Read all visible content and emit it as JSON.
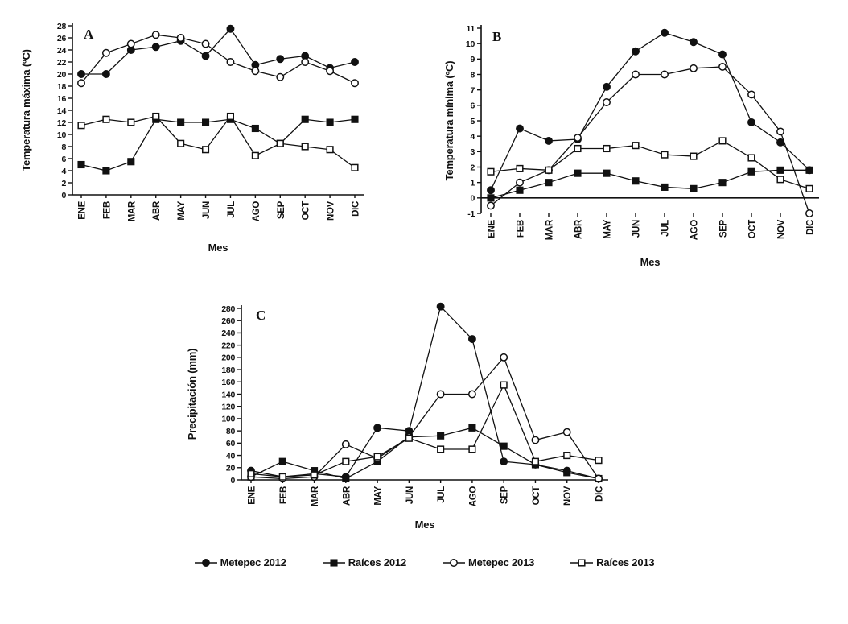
{
  "style": {
    "ink": "#111111",
    "background": "#ffffff"
  },
  "legend": {
    "items": [
      {
        "label": "Metepec 2012",
        "marker": "filled-circle"
      },
      {
        "label": "Raíces 2012",
        "marker": "filled-square"
      },
      {
        "label": "Metepec 2013",
        "marker": "open-circle"
      },
      {
        "label": "Raíces 2013",
        "marker": "open-square"
      }
    ]
  },
  "chart_data": [
    {
      "id": "A",
      "type": "line",
      "panel_label": "A",
      "xlabel": "Mes",
      "ylabel": "Temperatura máxima (ºC)",
      "categories": [
        "ENE",
        "FEB",
        "MAR",
        "ABR",
        "MAY",
        "JUN",
        "JUL",
        "AGO",
        "SEP",
        "OCT",
        "NOV",
        "DIC"
      ],
      "ylim": [
        0,
        28
      ],
      "ytick_step": 2,
      "grid": false,
      "series": [
        {
          "name": "Metepec 2012",
          "marker": "filled-circle",
          "values": [
            20,
            20,
            24,
            24.5,
            25.5,
            23,
            27.5,
            21.5,
            22.5,
            23,
            21,
            22
          ]
        },
        {
          "name": "Raíces 2012",
          "marker": "filled-square",
          "values": [
            5,
            4,
            5.5,
            12.5,
            12,
            12,
            12.5,
            11,
            8.5,
            12.5,
            12,
            12.5
          ]
        },
        {
          "name": "Metepec 2013",
          "marker": "open-circle",
          "values": [
            18.5,
            23.5,
            25,
            26.5,
            26,
            25,
            22,
            20.5,
            19.5,
            22,
            20.5,
            18.5
          ]
        },
        {
          "name": "Raíces 2013",
          "marker": "open-square",
          "values": [
            11.5,
            12.5,
            12,
            13,
            8.5,
            7.5,
            13,
            6.5,
            8.5,
            8,
            7.5,
            4.5
          ]
        }
      ]
    },
    {
      "id": "B",
      "type": "line",
      "panel_label": "B",
      "xlabel": "Mes",
      "ylabel": "Temperatura mínima (ºC)",
      "categories": [
        "ENE",
        "FEB",
        "MAR",
        "ABR",
        "MAY",
        "JUN",
        "JUL",
        "AGO",
        "SEP",
        "OCT",
        "NOV",
        "DIC"
      ],
      "ylim": [
        -1,
        11
      ],
      "ytick_step": 1,
      "grid": false,
      "series": [
        {
          "name": "Metepec 2012",
          "marker": "filled-circle",
          "values": [
            0.5,
            4.5,
            3.7,
            3.8,
            7.2,
            9.5,
            10.7,
            10.1,
            9.3,
            4.9,
            3.6,
            1.8
          ]
        },
        {
          "name": "Raíces 2012",
          "marker": "filled-square",
          "values": [
            0,
            0.5,
            1,
            1.6,
            1.6,
            1.1,
            0.7,
            0.6,
            1,
            1.7,
            1.8,
            1.8
          ]
        },
        {
          "name": "Metepec 2013",
          "marker": "open-circle",
          "values": [
            -0.5,
            1,
            1.8,
            3.9,
            6.2,
            8,
            8,
            8.4,
            8.5,
            6.7,
            4.3,
            -1
          ]
        },
        {
          "name": "Raíces 2013",
          "marker": "open-square",
          "values": [
            1.7,
            1.9,
            1.8,
            3.2,
            3.2,
            3.4,
            2.8,
            2.7,
            3.7,
            2.6,
            1.2,
            0.6
          ]
        }
      ]
    },
    {
      "id": "C",
      "type": "line",
      "panel_label": "C",
      "xlabel": "Mes",
      "ylabel": "Precipitación (mm)",
      "categories": [
        "ENE",
        "FEB",
        "MAR",
        "ABR",
        "MAY",
        "JUN",
        "JUL",
        "AGO",
        "SEP",
        "OCT",
        "NOV",
        "DIC"
      ],
      "ylim": [
        0,
        280
      ],
      "ytick_step": 20,
      "grid": false,
      "series": [
        {
          "name": "Metepec 2012",
          "marker": "filled-circle",
          "values": [
            15,
            5,
            10,
            5,
            85,
            80,
            283,
            230,
            30,
            25,
            15,
            2
          ]
        },
        {
          "name": "Raíces 2012",
          "marker": "filled-square",
          "values": [
            5,
            30,
            15,
            2,
            30,
            70,
            72,
            85,
            55,
            25,
            12,
            2
          ]
        },
        {
          "name": "Metepec 2013",
          "marker": "open-circle",
          "values": [
            5,
            2,
            5,
            58,
            35,
            70,
            140,
            140,
            200,
            65,
            78,
            2
          ]
        },
        {
          "name": "Raíces 2013",
          "marker": "open-square",
          "values": [
            10,
            5,
            8,
            30,
            38,
            68,
            50,
            50,
            155,
            30,
            40,
            32
          ]
        }
      ]
    }
  ]
}
